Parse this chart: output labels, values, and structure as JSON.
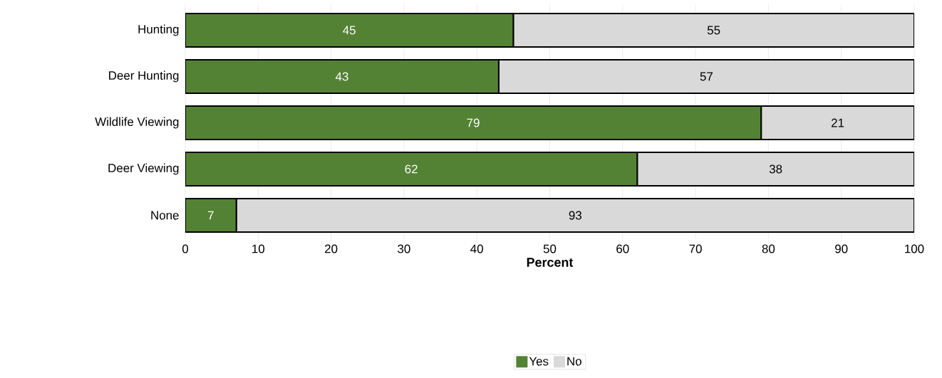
{
  "chart_data": {
    "type": "bar",
    "orientation": "horizontal",
    "stacked": true,
    "xlabel": "Percent",
    "categories": [
      "Hunting",
      "Deer Hunting",
      "Wildlife Viewing",
      "Deer Viewing",
      "None"
    ],
    "series": [
      {
        "name": "Yes",
        "color": "#548235",
        "values": [
          45,
          43,
          79,
          62,
          7
        ]
      },
      {
        "name": "No",
        "color": "#d9d9d9",
        "values": [
          55,
          57,
          21,
          38,
          93
        ]
      }
    ],
    "xlim": [
      0,
      100
    ],
    "xticks": [
      0,
      10,
      20,
      30,
      40,
      50,
      60,
      70,
      80,
      90,
      100
    ],
    "grid": "x",
    "legend": "bottom",
    "data_labels": true
  }
}
